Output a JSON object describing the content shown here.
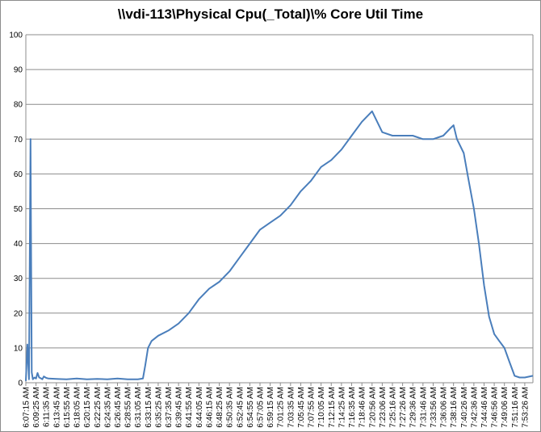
{
  "chart_data": {
    "type": "line",
    "title": "\\\\vdi-113\\Physical Cpu(_Total)\\% Core Util Time",
    "xlabel": "",
    "ylabel": "",
    "ylim": [
      0,
      100
    ],
    "y_ticks": [
      0,
      10,
      20,
      30,
      40,
      50,
      60,
      70,
      80,
      90,
      100
    ],
    "grid": true,
    "legend": "none",
    "x_tick_labels": [
      "6:07:15 AM",
      "6:09:25 AM",
      "6:11:35 AM",
      "6:13:45 AM",
      "6:15:55 AM",
      "6:18:05 AM",
      "6:20:15 AM",
      "6:22:25 AM",
      "6:24:35 AM",
      "6:26:45 AM",
      "6:28:55 AM",
      "6:31:05 AM",
      "6:33:15 AM",
      "6:35:25 AM",
      "6:37:35 AM",
      "6:39:45 AM",
      "6:41:55 AM",
      "6:44:05 AM",
      "6:46:15 AM",
      "6:48:25 AM",
      "6:50:35 AM",
      "6:52:45 AM",
      "6:54:55 AM",
      "6:57:05 AM",
      "6:59:15 AM",
      "7:01:25 AM",
      "7:03:35 AM",
      "7:05:45 AM",
      "7:07:55 AM",
      "7:10:05 AM",
      "7:12:15 AM",
      "7:14:25 AM",
      "7:16:35 AM",
      "7:18:46 AM",
      "7:20:56 AM",
      "7:23:06 AM",
      "7:25:16 AM",
      "7:27:26 AM",
      "7:29:36 AM",
      "7:31:46 AM",
      "7:33:56 AM",
      "7:36:06 AM",
      "7:38:16 AM",
      "7:40:26 AM",
      "7:42:36 AM",
      "7:44:46 AM",
      "7:46:56 AM",
      "7:49:06 AM",
      "7:51:16 AM",
      "7:53:26 AM"
    ],
    "x_range": [
      "6:07:15 AM",
      "7:55:10 AM"
    ],
    "series": [
      {
        "name": "",
        "color": "#4a7ebb",
        "x": [
          "6:07:15 AM",
          "6:07:35 AM",
          "6:07:55 AM",
          "6:08:15 AM",
          "6:08:30 AM",
          "6:08:45 AM",
          "6:09:05 AM",
          "6:09:25 AM",
          "6:09:45 AM",
          "6:10:05 AM",
          "6:10:25 AM",
          "6:10:45 AM",
          "6:11:05 AM",
          "6:11:35 AM",
          "6:12:05 AM",
          "6:13:45 AM",
          "6:15:55 AM",
          "6:18:05 AM",
          "6:20:15 AM",
          "6:22:25 AM",
          "6:24:35 AM",
          "6:26:45 AM",
          "6:28:55 AM",
          "6:31:05 AM",
          "6:32:10 AM",
          "6:32:40 AM",
          "6:33:15 AM",
          "6:34:00 AM",
          "6:35:25 AM",
          "6:37:35 AM",
          "6:39:45 AM",
          "6:41:55 AM",
          "6:44:05 AM",
          "6:46:15 AM",
          "6:48:25 AM",
          "6:50:35 AM",
          "6:52:45 AM",
          "6:54:55 AM",
          "6:57:05 AM",
          "6:59:15 AM",
          "7:01:25 AM",
          "7:03:35 AM",
          "7:05:45 AM",
          "7:07:55 AM",
          "7:10:05 AM",
          "7:12:15 AM",
          "7:14:25 AM",
          "7:16:35 AM",
          "7:18:46 AM",
          "7:20:56 AM",
          "7:23:06 AM",
          "7:25:16 AM",
          "7:27:26 AM",
          "7:29:36 AM",
          "7:31:46 AM",
          "7:33:56 AM",
          "7:36:06 AM",
          "7:37:30 AM",
          "7:38:16 AM",
          "7:39:00 AM",
          "7:40:26 AM",
          "7:41:30 AM",
          "7:42:36 AM",
          "7:43:40 AM",
          "7:44:46 AM",
          "7:45:50 AM",
          "7:46:56 AM",
          "7:48:00 AM",
          "7:49:06 AM",
          "7:50:10 AM",
          "7:51:16 AM",
          "7:52:20 AM",
          "7:53:26 AM",
          "7:55:10 AM"
        ],
        "values": [
          0.5,
          11,
          1,
          70,
          3,
          1,
          1.5,
          1.2,
          2.8,
          1.5,
          1.3,
          1.0,
          1.8,
          1.4,
          1.2,
          1.1,
          1.0,
          1.2,
          1.0,
          1.1,
          1.0,
          1.2,
          1.0,
          1.0,
          1.2,
          5,
          10,
          12,
          13.5,
          15,
          17,
          20,
          24,
          27,
          29,
          32,
          36,
          40,
          44,
          46,
          48,
          51,
          55,
          58,
          62,
          64,
          67,
          71,
          75,
          78,
          72,
          71,
          71,
          71,
          70,
          70,
          71,
          73,
          74,
          70,
          66,
          58,
          50,
          40,
          28,
          19,
          14,
          12,
          10,
          6,
          2,
          1.5,
          1.5,
          2
        ]
      }
    ]
  }
}
